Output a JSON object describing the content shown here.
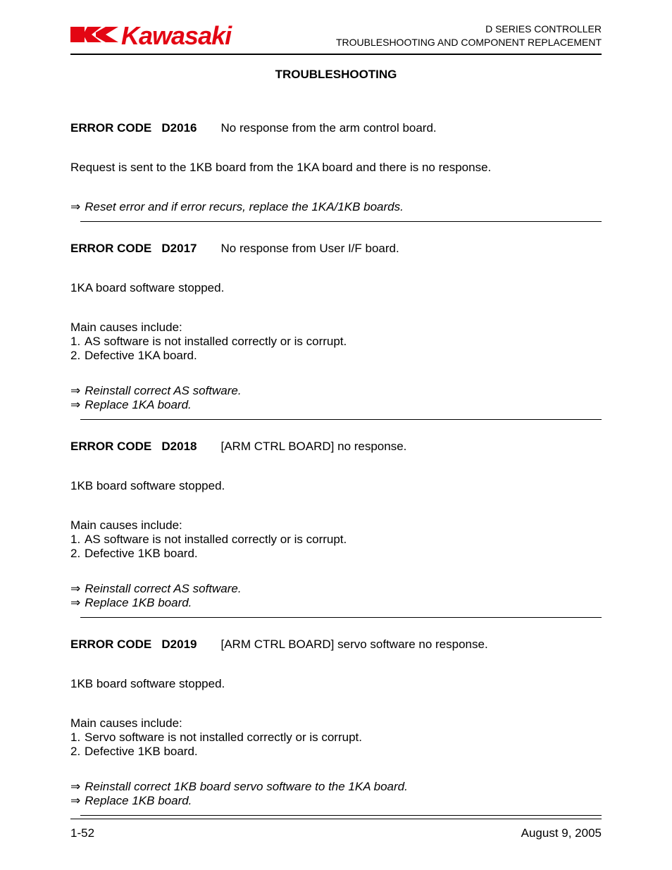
{
  "colors": {
    "logo": "#e30613",
    "text": "#000000",
    "background": "#ffffff",
    "rule": "#000000"
  },
  "typography": {
    "body_fontsize_pt": 13,
    "title_fontsize_pt": 13,
    "logo_fontsize_pt": 27,
    "font_family": "Arial"
  },
  "header": {
    "logo_text": "Kawasaki",
    "right_line1": "D SERIES CONTROLLER",
    "right_line2": "TROUBLESHOOTING AND COMPONENT REPLACEMENT"
  },
  "section_title": "TROUBLESHOOTING",
  "errors": [
    {
      "code_label": "ERROR CODE   D2016",
      "title": "No response from the arm control board.",
      "description": "Request is sent to the 1KB board from the 1KA board and there is no response.",
      "causes_intro": "",
      "causes": [],
      "actions": [
        "Reset error and if error recurs, replace the 1KA/1KB boards."
      ]
    },
    {
      "code_label": "ERROR CODE   D2017",
      "title": "No response from User I/F board.",
      "description": "1KA board software stopped.",
      "causes_intro": "Main causes include:",
      "causes": [
        "AS software is not installed correctly or is corrupt.",
        "Defective 1KA board."
      ],
      "actions": [
        "Reinstall correct AS software.",
        "Replace 1KA board."
      ]
    },
    {
      "code_label": "ERROR CODE   D2018",
      "title": "[ARM CTRL BOARD] no response.",
      "description": "1KB board software stopped.",
      "causes_intro": "Main causes include:",
      "causes": [
        "AS software is not installed correctly or is corrupt.",
        "Defective 1KB board."
      ],
      "actions": [
        "Reinstall correct AS software.",
        "Replace 1KB board."
      ]
    },
    {
      "code_label": "ERROR CODE   D2019",
      "title": "[ARM CTRL BOARD] servo software no response.",
      "description": "1KB board software stopped.",
      "causes_intro": "Main causes include:",
      "causes": [
        "Servo software is not installed correctly or is corrupt.",
        "Defective 1KB board."
      ],
      "actions": [
        "Reinstall correct 1KB board servo software to the 1KA board.",
        "Replace 1KB board."
      ]
    }
  ],
  "footer": {
    "page": "1-52",
    "date": "August 9, 2005"
  }
}
